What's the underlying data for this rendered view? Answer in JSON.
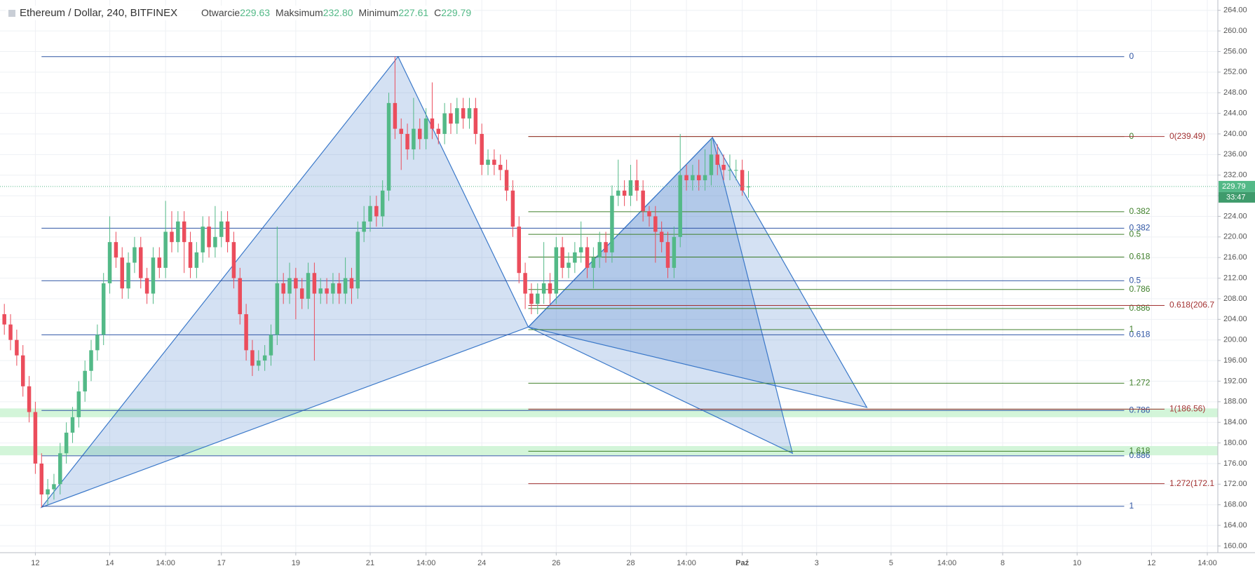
{
  "chart_data": {
    "type": "candlestick",
    "title": "Ethereum / Dollar, 240, BITFINEX",
    "header_values": [
      {
        "label": "Otwarcie",
        "value": "229.63"
      },
      {
        "label": "Maksimum",
        "value": "232.80"
      },
      {
        "label": "Minimum",
        "value": "227.61"
      },
      {
        "label": "C",
        "value": "229.79"
      }
    ],
    "x": [
      -5,
      -4,
      -3,
      -2,
      -1,
      0,
      1,
      2,
      3,
      4,
      5,
      6,
      7,
      8,
      9,
      10,
      11,
      12,
      13,
      14,
      15,
      16,
      17,
      18,
      19,
      20,
      21,
      22,
      23,
      24,
      25,
      26,
      27,
      28,
      29,
      30,
      31,
      32,
      33,
      34,
      35,
      36,
      37,
      38,
      39,
      40,
      41,
      42,
      43,
      44,
      45,
      46,
      47,
      48,
      49,
      50,
      51,
      52,
      53,
      54,
      55,
      56,
      57,
      58,
      59,
      60,
      61,
      62,
      63,
      64,
      65,
      66,
      67,
      68,
      69,
      70,
      71,
      72,
      73,
      74,
      75,
      76,
      77,
      78,
      79,
      80,
      81,
      82,
      83,
      84,
      85,
      86,
      87,
      88,
      89,
      90,
      91,
      92,
      93,
      94,
      95,
      96,
      97,
      98,
      99,
      100,
      101,
      102,
      103,
      104,
      105,
      106,
      107,
      108,
      109,
      110,
      111,
      112,
      113,
      114,
      115
    ],
    "open": [
      205,
      203,
      200,
      197,
      191,
      186,
      176,
      170,
      171,
      172,
      178,
      182,
      185,
      190,
      194,
      198,
      201,
      211,
      219,
      216,
      210,
      215,
      218,
      212,
      209,
      216,
      214,
      221,
      219,
      223,
      219,
      214,
      217,
      222,
      218,
      220,
      223,
      219,
      212,
      205,
      198,
      195,
      196,
      197,
      201,
      211,
      209,
      212,
      210,
      208,
      213,
      209,
      210,
      209,
      211,
      209,
      212,
      210,
      221,
      223,
      226,
      224,
      229,
      246,
      241,
      240,
      237,
      241,
      239,
      243,
      241,
      240,
      244,
      242,
      245,
      243,
      245,
      240,
      234,
      235,
      234,
      233,
      229,
      222,
      213,
      209,
      207,
      209,
      211,
      209,
      218,
      214,
      215,
      217,
      218,
      214,
      216,
      219,
      217,
      228,
      229,
      228,
      231,
      229,
      225,
      224,
      221,
      219,
      214,
      220,
      232,
      231,
      232,
      231,
      232,
      236,
      234,
      233,
      233,
      233,
      229.63
    ],
    "high": [
      207,
      205,
      202,
      199,
      193,
      188,
      178,
      173,
      174,
      180,
      184,
      187,
      192,
      196,
      200,
      203,
      213,
      224,
      221,
      218,
      217,
      220,
      220,
      214,
      218,
      218,
      227,
      225,
      225,
      225,
      221,
      219,
      224,
      224,
      226,
      225,
      225,
      221,
      214,
      207,
      200,
      198,
      199,
      203,
      222,
      213,
      215,
      214,
      212,
      215,
      215,
      212,
      212,
      213,
      213,
      216,
      214,
      223,
      226,
      228,
      228,
      231,
      248,
      255,
      243,
      242,
      247,
      243,
      245,
      250,
      242,
      246,
      246,
      247,
      247,
      247,
      247,
      242,
      237,
      237,
      236,
      235,
      231,
      224,
      215,
      211,
      211,
      219,
      213,
      220,
      220,
      217,
      219,
      223,
      220,
      218,
      221,
      221,
      230,
      235,
      231,
      234,
      235,
      231,
      226,
      226,
      223,
      221,
      222,
      240,
      234,
      234,
      235,
      237,
      239,
      238,
      236,
      236,
      235,
      235,
      232.8
    ],
    "low": [
      201,
      198,
      195,
      189,
      184,
      174,
      167.5,
      168,
      169,
      170,
      176,
      180,
      183,
      188,
      192,
      196,
      199,
      209,
      214,
      208,
      208,
      213,
      210,
      207,
      207,
      212,
      212,
      217,
      217,
      213,
      212,
      212,
      215,
      216,
      216,
      218,
      217,
      210,
      203,
      196,
      193,
      194,
      194,
      195,
      199,
      207,
      207,
      204,
      206,
      206,
      196,
      207,
      207,
      207,
      207,
      207,
      207,
      208,
      219,
      221,
      222,
      222,
      227,
      239,
      233,
      235,
      235,
      237,
      237,
      239,
      238,
      238,
      240,
      240,
      241,
      241,
      238,
      232,
      232,
      232,
      231,
      227,
      220,
      211,
      206,
      205,
      205,
      207,
      207,
      207,
      212,
      212,
      213,
      215,
      212,
      210,
      214,
      215,
      215,
      226,
      226,
      226,
      227,
      223,
      222,
      215,
      217,
      212,
      212,
      218,
      229,
      229,
      229,
      229,
      230,
      232,
      231,
      231,
      231,
      228,
      227.61
    ],
    "close": [
      203,
      200,
      197,
      191,
      186,
      176,
      170,
      171,
      172,
      178,
      182,
      185,
      190,
      194,
      198,
      201,
      211,
      219,
      216,
      210,
      215,
      218,
      212,
      209,
      216,
      214,
      221,
      219,
      223,
      219,
      214,
      217,
      222,
      218,
      220,
      223,
      219,
      212,
      205,
      198,
      195,
      196,
      197,
      201,
      211,
      209,
      212,
      210,
      208,
      213,
      209,
      210,
      209,
      211,
      209,
      212,
      210,
      221,
      223,
      226,
      224,
      229,
      246,
      241,
      240,
      237,
      241,
      239,
      243,
      241,
      240,
      244,
      242,
      245,
      243,
      245,
      240,
      234,
      235,
      234,
      233,
      229,
      222,
      213,
      209,
      207,
      209,
      211,
      209,
      218,
      214,
      215,
      217,
      218,
      214,
      216,
      219,
      217,
      228,
      229,
      228,
      231,
      229,
      225,
      224,
      221,
      219,
      214,
      220,
      232,
      231,
      232,
      231,
      232,
      236,
      234,
      233,
      233,
      233,
      229,
      229.79
    ],
    "up_color": "#53b987",
    "down_color": "#eb4d5c",
    "xlim": [
      -5.7,
      190.7
    ],
    "ylim": [
      158.7,
      266.0
    ],
    "xticks": [
      {
        "value": 0,
        "label": "12"
      },
      {
        "value": 12,
        "label": "14"
      },
      {
        "value": 21,
        "label": "14:00"
      },
      {
        "value": 30,
        "label": "17"
      },
      {
        "value": 42,
        "label": "19"
      },
      {
        "value": 54,
        "label": "21"
      },
      {
        "value": 63,
        "label": "14:00"
      },
      {
        "value": 72,
        "label": "24"
      },
      {
        "value": 84,
        "label": "26"
      },
      {
        "value": 96,
        "label": "28"
      },
      {
        "value": 105,
        "label": "14:00"
      },
      {
        "value": 114,
        "label": "Paź"
      },
      {
        "value": 126,
        "label": "3"
      },
      {
        "value": 138,
        "label": "5"
      },
      {
        "value": 147,
        "label": "14:00"
      },
      {
        "value": 156,
        "label": "8"
      },
      {
        "value": 168,
        "label": "10"
      },
      {
        "value": 180,
        "label": "12"
      },
      {
        "value": 189,
        "label": "14:00"
      }
    ],
    "yticks": [
      {
        "value": 160,
        "label": "160.00"
      },
      {
        "value": 164,
        "label": "164.00"
      },
      {
        "value": 168,
        "label": "168.00"
      },
      {
        "value": 172,
        "label": "172.00"
      },
      {
        "value": 176,
        "label": "176.00"
      },
      {
        "value": 180,
        "label": "180.00"
      },
      {
        "value": 184,
        "label": "184.00"
      },
      {
        "value": 188,
        "label": "188.00"
      },
      {
        "value": 192,
        "label": "192.00"
      },
      {
        "value": 196,
        "label": "196.00"
      },
      {
        "value": 200,
        "label": "200.00"
      },
      {
        "value": 204,
        "label": "204.00"
      },
      {
        "value": 208,
        "label": "208.00"
      },
      {
        "value": 212,
        "label": "212.00"
      },
      {
        "value": 216,
        "label": "216.00"
      },
      {
        "value": 220,
        "label": "220.00"
      },
      {
        "value": 224,
        "label": "224.00"
      },
      {
        "value": 228,
        "label": "228.00"
      },
      {
        "value": 232,
        "label": "232.00"
      },
      {
        "value": 236,
        "label": "236.00"
      },
      {
        "value": 240,
        "label": "240.00"
      },
      {
        "value": 244,
        "label": "244.00"
      },
      {
        "value": 248,
        "label": "248.00"
      },
      {
        "value": 252,
        "label": "252.00"
      },
      {
        "value": 256,
        "label": "256.00"
      },
      {
        "value": 260,
        "label": "260.00"
      },
      {
        "value": 264,
        "label": "264.00"
      }
    ],
    "grid": true,
    "last_price": {
      "value": 229.79,
      "label": "229.79",
      "countdown": "33:47",
      "color": "#53b987"
    },
    "zones": [
      {
        "low": 185.0,
        "high": 186.7,
        "color": "#c8f3cf"
      },
      {
        "low": 177.6,
        "high": 179.4,
        "color": "#c8f3cf"
      }
    ],
    "patterns": [
      {
        "points": [
          [
            1,
            167.5
          ],
          [
            58.5,
            255
          ],
          [
            79.5,
            202.5
          ]
        ]
      },
      {
        "points": [
          [
            79.5,
            202.5
          ],
          [
            109.2,
            239.3
          ],
          [
            122.1,
            178
          ]
        ]
      },
      {
        "points": [
          [
            79.5,
            202.5
          ],
          [
            109.2,
            239.3
          ],
          [
            134.1,
            186.9
          ]
        ]
      }
    ],
    "pattern_color": "#3a78c9",
    "fib_sets": [
      {
        "color": "#2f55a4",
        "x_start": 1,
        "x_end": 175.6,
        "levels": [
          {
            "price": 255,
            "label": "0"
          },
          {
            "price": 221.7,
            "label": "0.382"
          },
          {
            "price": 211.5,
            "label": "0.5"
          },
          {
            "price": 201,
            "label": "0.618"
          },
          {
            "price": 186.3,
            "label": "0.786"
          },
          {
            "price": 177.5,
            "label": "0.886"
          },
          {
            "price": 167.7,
            "label": "1"
          }
        ]
      },
      {
        "color": "#3f7f2a",
        "x_start": 79.5,
        "x_end": 175.6,
        "levels": [
          {
            "price": 239.5,
            "label": "0"
          },
          {
            "price": 224.9,
            "label": "0.382"
          },
          {
            "price": 220.5,
            "label": "0.5"
          },
          {
            "price": 216.1,
            "label": "0.618"
          },
          {
            "price": 209.8,
            "label": "0.786"
          },
          {
            "price": 206.1,
            "label": "0.886"
          },
          {
            "price": 202,
            "label": "1"
          },
          {
            "price": 191.6,
            "label": "1.272"
          },
          {
            "price": 178.4,
            "label": "1.618"
          }
        ]
      },
      {
        "color": "#a33232",
        "x_start": 79.5,
        "x_end": 182.1,
        "levels": [
          {
            "price": 239.49,
            "label": "0(239.49)"
          },
          {
            "price": 206.7,
            "label": "0.618(206.7"
          },
          {
            "price": 186.56,
            "label": "1(186.56)"
          },
          {
            "price": 172.1,
            "label": "1.272(172.1"
          }
        ]
      }
    ]
  }
}
